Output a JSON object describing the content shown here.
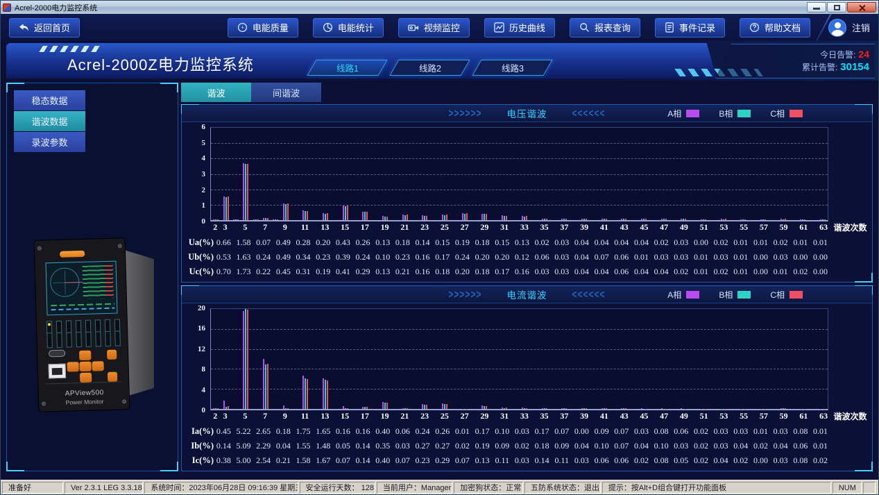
{
  "window": {
    "title": "Acrel-2000电力监控系统"
  },
  "navbar": {
    "back_label": "返回首页",
    "buttons": [
      {
        "label": "电能质量",
        "icon": "power-quality-icon"
      },
      {
        "label": "电能统计",
        "icon": "energy-statistics-icon"
      },
      {
        "label": "视频监控",
        "icon": "video-monitor-icon"
      },
      {
        "label": "历史曲线",
        "icon": "history-curve-icon"
      },
      {
        "label": "报表查询",
        "icon": "report-query-icon"
      },
      {
        "label": "事件记录",
        "icon": "event-record-icon"
      },
      {
        "label": "帮助文档",
        "icon": "help-doc-icon"
      }
    ],
    "logout_label": "注销"
  },
  "header": {
    "system_title": "Acrel-2000Z电力监控系统",
    "line_tabs": [
      {
        "label": "线路1",
        "active": true
      },
      {
        "label": "线路2",
        "active": false
      },
      {
        "label": "线路3",
        "active": false
      }
    ],
    "alerts": {
      "today_label": "今日告警:",
      "today_value": "24",
      "total_label": "累计告警:",
      "total_value": "30154"
    }
  },
  "sidebar": {
    "items": [
      {
        "label": "稳态数据",
        "active": false
      },
      {
        "label": "谐波数据",
        "active": true
      },
      {
        "label": "录波参数",
        "active": false
      }
    ],
    "device": {
      "model": "APView500",
      "name": "Power Monitor"
    }
  },
  "data_tabs": [
    {
      "label": "谐波",
      "active": true
    },
    {
      "label": "间谐波",
      "active": false
    }
  ],
  "chart_data": [
    {
      "type": "bar",
      "title": "电压谐波",
      "xlabel": "谐波次数",
      "x_range": [
        2,
        63
      ],
      "x_labels": [
        2,
        3,
        5,
        7,
        9,
        11,
        13,
        15,
        17,
        19,
        21,
        23,
        25,
        27,
        29,
        31,
        33,
        35,
        37,
        39,
        41,
        43,
        45,
        47,
        49,
        51,
        53,
        55,
        57,
        59,
        61,
        63
      ],
      "ylim": [
        0,
        6
      ],
      "yticks": [
        6,
        5,
        4,
        3,
        2,
        1,
        0
      ],
      "legend_position": "top-right",
      "grid": "dashed-horizontal",
      "legend": [
        {
          "name": "A相",
          "color": "#bb4bf0"
        },
        {
          "name": "B相",
          "color": "#2ed3c6"
        },
        {
          "name": "C相",
          "color": "#ef4e63"
        }
      ],
      "series": [
        {
          "name": "A相",
          "color": "#bb4bf0",
          "values": {
            "2": 0.06,
            "3": 1.52,
            "4": 0.05,
            "5": 3.7,
            "6": 0.04,
            "7": 0.15,
            "8": 0.04,
            "9": 1.1,
            "11": 0.62,
            "13": 0.45,
            "15": 0.95,
            "17": 0.55,
            "19": 0.25,
            "21": 0.36,
            "23": 0.3,
            "25": 0.36,
            "27": 0.45,
            "29": 0.42,
            "31": 0.3,
            "33": 0.26,
            "35": 0.1,
            "37": 0.1,
            "39": 0.1,
            "41": 0.1,
            "43": 0.1,
            "45": 0.08,
            "47": 0.08,
            "49": 0.08,
            "51": 0.06,
            "53": 0.08,
            "55": 0.06,
            "57": 0.06,
            "59": 0.08,
            "61": 0.06,
            "63": 0.06
          }
        },
        {
          "name": "B相",
          "color": "#2ed3c6",
          "values": {
            "2": 0.05,
            "3": 1.49,
            "4": 0.04,
            "5": 3.64,
            "6": 0.03,
            "7": 0.12,
            "8": 0.03,
            "9": 1.06,
            "11": 0.58,
            "13": 0.42,
            "15": 0.92,
            "17": 0.52,
            "19": 0.23,
            "21": 0.33,
            "23": 0.28,
            "25": 0.33,
            "27": 0.42,
            "29": 0.39,
            "31": 0.28,
            "33": 0.24,
            "35": 0.08,
            "37": 0.08,
            "39": 0.08,
            "41": 0.08,
            "43": 0.08,
            "45": 0.07,
            "47": 0.07,
            "49": 0.07,
            "51": 0.05,
            "53": 0.06,
            "55": 0.05,
            "57": 0.05,
            "59": 0.06,
            "61": 0.05,
            "63": 0.05
          }
        },
        {
          "name": "C相",
          "color": "#ef4e63",
          "values": {
            "2": 0.05,
            "3": 1.54,
            "4": 0.04,
            "5": 3.67,
            "6": 0.03,
            "7": 0.13,
            "8": 0.03,
            "9": 1.08,
            "11": 0.6,
            "13": 0.44,
            "15": 0.94,
            "17": 0.54,
            "19": 0.24,
            "21": 0.35,
            "23": 0.29,
            "25": 0.35,
            "27": 0.44,
            "29": 0.41,
            "31": 0.29,
            "33": 0.25,
            "35": 0.09,
            "37": 0.09,
            "39": 0.09,
            "41": 0.09,
            "43": 0.09,
            "45": 0.07,
            "47": 0.07,
            "49": 0.07,
            "51": 0.06,
            "53": 0.07,
            "55": 0.06,
            "57": 0.06,
            "59": 0.07,
            "61": 0.06,
            "63": 0.06
          }
        }
      ],
      "table": {
        "columns": [
          3,
          5,
          7,
          9,
          11,
          13,
          15,
          17,
          19,
          21,
          23,
          25,
          27,
          29,
          31,
          33,
          35,
          37,
          39,
          41,
          43,
          45,
          47,
          49,
          51,
          53,
          55,
          57,
          59,
          61,
          63
        ],
        "rows": [
          {
            "label": "Ua(%)",
            "values": [
              0.66,
              1.58,
              0.07,
              0.49,
              0.28,
              0.2,
              0.43,
              0.26,
              0.13,
              0.18,
              0.14,
              0.15,
              0.19,
              0.18,
              0.15,
              0.13,
              0.02,
              0.03,
              0.04,
              0.04,
              0.04,
              0.04,
              0.02,
              0.03,
              0.0,
              0.02,
              0.01,
              0.01,
              0.02,
              0.01,
              0.01
            ]
          },
          {
            "label": "Ub(%)",
            "values": [
              0.53,
              1.63,
              0.24,
              0.49,
              0.34,
              0.23,
              0.39,
              0.24,
              0.1,
              0.23,
              0.16,
              0.17,
              0.24,
              0.2,
              0.2,
              0.12,
              0.06,
              0.03,
              0.04,
              0.07,
              0.06,
              0.01,
              0.03,
              0.03,
              0.01,
              0.03,
              0.01,
              0.0,
              0.03,
              0.0,
              0.0
            ]
          },
          {
            "label": "Uc(%)",
            "values": [
              0.7,
              1.73,
              0.22,
              0.45,
              0.31,
              0.19,
              0.41,
              0.29,
              0.13,
              0.21,
              0.16,
              0.18,
              0.2,
              0.18,
              0.17,
              0.16,
              0.03,
              0.03,
              0.04,
              0.04,
              0.06,
              0.04,
              0.04,
              0.02,
              0.01,
              0.02,
              0.01,
              0.0,
              0.01,
              0.02,
              0.0
            ]
          }
        ]
      }
    },
    {
      "type": "bar",
      "title": "电流谐波",
      "xlabel": "谐波次数",
      "x_range": [
        2,
        63
      ],
      "x_labels": [
        2,
        3,
        5,
        7,
        9,
        11,
        13,
        15,
        17,
        19,
        21,
        23,
        25,
        27,
        29,
        31,
        33,
        35,
        37,
        39,
        41,
        43,
        45,
        47,
        49,
        51,
        53,
        55,
        57,
        59,
        61,
        63
      ],
      "ylim": [
        0,
        20
      ],
      "yticks": [
        20,
        16,
        12,
        8,
        4,
        0
      ],
      "legend_position": "top-right",
      "grid": "dashed-horizontal",
      "legend": [
        {
          "name": "A相",
          "color": "#bb4bf0"
        },
        {
          "name": "B相",
          "color": "#2ed3c6"
        },
        {
          "name": "C相",
          "color": "#ef4e63"
        }
      ],
      "series": [
        {
          "name": "A相",
          "color": "#bb4bf0",
          "values": {
            "2": 0.2,
            "3": 1.7,
            "5": 19.6,
            "7": 10.0,
            "9": 0.7,
            "11": 6.6,
            "13": 6.1,
            "15": 0.5,
            "17": 0.45,
            "19": 1.35,
            "21": 0.15,
            "23": 0.95,
            "25": 1.05,
            "27": 0.06,
            "29": 0.65,
            "31": 0.3,
            "33": 0.25,
            "35": 0.1,
            "37": 0.1,
            "39": 0.1,
            "41": 0.1,
            "43": 0.1,
            "45": 0.08,
            "47": 0.08,
            "49": 0.08,
            "51": 0.06,
            "53": 0.06,
            "55": 0.06,
            "57": 0.05,
            "59": 0.1,
            "61": 0.05,
            "63": 0.05
          }
        },
        {
          "name": "B相",
          "color": "#2ed3c6",
          "values": {
            "2": 0.1,
            "3": 0.45,
            "5": 20.0,
            "7": 8.9,
            "9": 0.15,
            "11": 6.1,
            "13": 5.8,
            "15": 0.12,
            "17": 0.4,
            "19": 1.25,
            "21": 0.1,
            "23": 0.9,
            "25": 1.0,
            "27": 0.05,
            "29": 0.6,
            "31": 0.2,
            "33": 0.15,
            "35": 0.08,
            "37": 0.08,
            "39": 0.08,
            "41": 0.08,
            "43": 0.08,
            "45": 0.06,
            "47": 0.06,
            "49": 0.06,
            "51": 0.05,
            "53": 0.05,
            "55": 0.05,
            "57": 0.04,
            "59": 0.08,
            "61": 0.04,
            "63": 0.04
          }
        },
        {
          "name": "C相",
          "color": "#ef4e63",
          "values": {
            "2": 0.15,
            "3": 0.5,
            "5": 19.8,
            "7": 9.0,
            "9": 0.2,
            "11": 6.0,
            "13": 5.7,
            "15": 0.15,
            "17": 0.4,
            "19": 1.25,
            "21": 0.1,
            "23": 0.9,
            "25": 1.0,
            "27": 0.05,
            "29": 0.6,
            "31": 0.25,
            "33": 0.2,
            "35": 0.08,
            "37": 0.08,
            "39": 0.08,
            "41": 0.08,
            "43": 0.08,
            "45": 0.06,
            "47": 0.06,
            "49": 0.06,
            "51": 0.05,
            "53": 0.05,
            "55": 0.05,
            "57": 0.04,
            "59": 0.08,
            "61": 0.04,
            "63": 0.04
          }
        }
      ],
      "table": {
        "columns": [
          3,
          5,
          7,
          9,
          11,
          13,
          15,
          17,
          19,
          21,
          23,
          25,
          27,
          29,
          31,
          33,
          35,
          37,
          39,
          41,
          43,
          45,
          47,
          49,
          51,
          53,
          55,
          57,
          59,
          61,
          63
        ],
        "rows": [
          {
            "label": "Ia(%)",
            "values": [
              0.45,
              5.22,
              2.65,
              0.18,
              1.75,
              1.65,
              0.16,
              0.16,
              0.4,
              0.06,
              0.24,
              0.26,
              0.01,
              0.17,
              0.1,
              0.03,
              0.17,
              0.07,
              0.0,
              0.09,
              0.07,
              0.03,
              0.08,
              0.06,
              0.02,
              0.03,
              0.03,
              0.01,
              0.03,
              0.08,
              0.01
            ]
          },
          {
            "label": "Ib(%)",
            "values": [
              0.14,
              5.09,
              2.29,
              0.04,
              1.55,
              1.48,
              0.05,
              0.14,
              0.35,
              0.03,
              0.27,
              0.27,
              0.02,
              0.19,
              0.09,
              0.02,
              0.18,
              0.09,
              0.04,
              0.1,
              0.07,
              0.04,
              0.1,
              0.03,
              0.02,
              0.03,
              0.04,
              0.02,
              0.04,
              0.06,
              0.01
            ]
          },
          {
            "label": "Ic(%)",
            "values": [
              0.38,
              5.0,
              2.54,
              0.21,
              1.58,
              1.67,
              0.07,
              0.14,
              0.4,
              0.07,
              0.23,
              0.29,
              0.07,
              0.13,
              0.11,
              0.03,
              0.14,
              0.11,
              0.03,
              0.06,
              0.06,
              0.02,
              0.08,
              0.05,
              0.02,
              0.04,
              0.02,
              0.0,
              0.03,
              0.08,
              0.02
            ]
          }
        ]
      }
    }
  ],
  "statusbar": {
    "ready": "准备好",
    "version": "Ver 2.3.1 LEG 3.3.18",
    "sys_time": "系统时间：2023年06月28日  09:16:39  星期三",
    "safe_days": "安全运行天数：  128",
    "current_user": "当前用户：Manager",
    "dongle": "加密狗状态：正常",
    "wufang": "五防系统状态：退出",
    "hint": "提示：按Alt+D组合键打开功能面板",
    "num": "NUM"
  }
}
